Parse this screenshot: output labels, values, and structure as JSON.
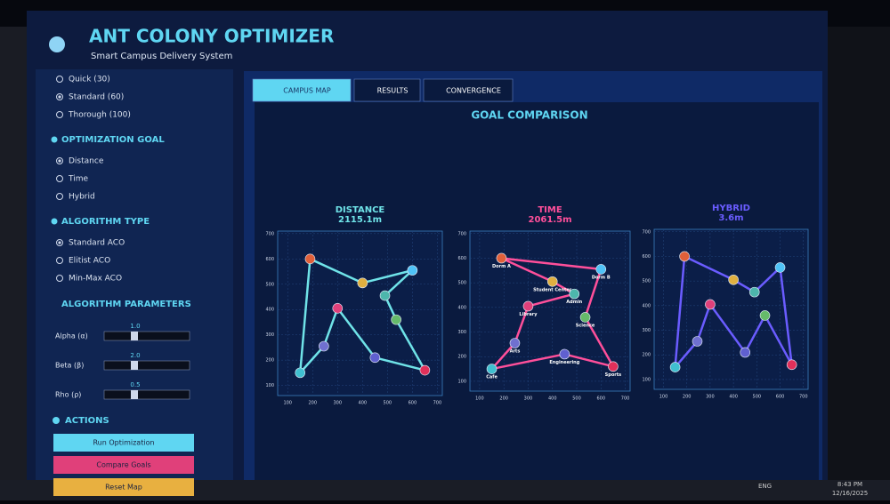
{
  "header": {
    "title": "ANT COLONY OPTIMIZER",
    "subtitle": "Smart Campus Delivery System"
  },
  "sidebar": {
    "iterations": {
      "options": [
        "Quick (30)",
        "Standard (60)",
        "Thorough (100)"
      ],
      "selected": 1
    },
    "sections": [
      {
        "title": "OPTIMIZATION GOAL",
        "options": [
          "Distance",
          "Time",
          "Hybrid"
        ],
        "selected": 0
      },
      {
        "title": "ALGORITHM TYPE",
        "options": [
          "Standard ACO",
          "Elitist ACO",
          "Min-Max ACO"
        ],
        "selected": 0
      }
    ],
    "parameters": {
      "title": "ALGORITHM PARAMETERS",
      "items": [
        {
          "name": "Alpha (α)",
          "value": "1.0"
        },
        {
          "name": "Beta (β)",
          "value": "2.0"
        },
        {
          "name": "Rho (ρ)",
          "value": "0.5"
        }
      ]
    },
    "actions": {
      "title": "ACTIONS",
      "buttons": [
        "Run Optimization",
        "Compare Goals",
        "Reset Map"
      ]
    }
  },
  "tabs": [
    "CAMPUS MAP",
    "RESULTS",
    "CONVERGENCE"
  ],
  "panel_title": "GOAL COMPARISON",
  "taskbar": {
    "lang": "ENG",
    "time": "8:43 PM",
    "date": "12/16/2025"
  },
  "chart_data": [
    {
      "type": "route",
      "title": "DISTANCE",
      "subtitle": "2115.1m",
      "color": "#6fe3e8",
      "x": [
        190,
        150,
        245,
        300,
        450,
        650,
        535,
        490,
        600,
        400
      ],
      "y": [
        600,
        150,
        255,
        405,
        210,
        160,
        360,
        455,
        555,
        505
      ],
      "colors": [
        "#e0603a",
        "#40c0d0",
        "#7070d0",
        "#e0407a",
        "#6060d0",
        "#e0305a",
        "#66bb6a",
        "#4db6ac",
        "#4fc3f7",
        "#e0b040"
      ],
      "xlim": [
        60,
        720
      ],
      "ylim": [
        60,
        710
      ],
      "xticks": [
        100,
        200,
        300,
        400,
        500,
        600,
        700
      ],
      "yticks": [
        100,
        200,
        300,
        400,
        500,
        600,
        700
      ]
    },
    {
      "type": "route",
      "title": "TIME",
      "subtitle": "2061.5m",
      "color": "#ff4f9a",
      "x": [
        190,
        600,
        535,
        650,
        450,
        150,
        245,
        300,
        490,
        400
      ],
      "y": [
        600,
        555,
        360,
        160,
        210,
        150,
        255,
        405,
        455,
        505
      ],
      "colors": [
        "#e0603a",
        "#4fc3f7",
        "#66bb6a",
        "#e0305a",
        "#6060d0",
        "#40c0d0",
        "#7070d0",
        "#e0407a",
        "#4db6ac",
        "#e0b040"
      ],
      "labels": [
        "Dorm A",
        "Dorm B",
        "Science",
        "Sports",
        "Engineering",
        "Cafe",
        "Arts",
        "Library",
        "Admin",
        "Student Center"
      ],
      "xlim": [
        60,
        720
      ],
      "ylim": [
        60,
        710
      ],
      "xticks": [
        100,
        200,
        300,
        400,
        500,
        600,
        700
      ],
      "yticks": [
        100,
        200,
        300,
        400,
        500,
        600,
        700
      ]
    },
    {
      "type": "route",
      "title": "HYBRID",
      "subtitle": "3.6m",
      "color": "#6a5cff",
      "x": [
        190,
        400,
        490,
        600,
        650,
        535,
        450,
        300,
        245,
        150
      ],
      "y": [
        600,
        505,
        455,
        555,
        160,
        360,
        210,
        405,
        255,
        150
      ],
      "colors": [
        "#e0603a",
        "#e0b040",
        "#4db6ac",
        "#4fc3f7",
        "#e0305a",
        "#66bb6a",
        "#6060d0",
        "#e0407a",
        "#7070d0",
        "#40c0d0"
      ],
      "xlim": [
        60,
        720
      ],
      "ylim": [
        60,
        710
      ],
      "xticks": [
        100,
        200,
        300,
        400,
        500,
        600,
        700
      ],
      "yticks": [
        100,
        200,
        300,
        400,
        500,
        600,
        700
      ]
    }
  ]
}
